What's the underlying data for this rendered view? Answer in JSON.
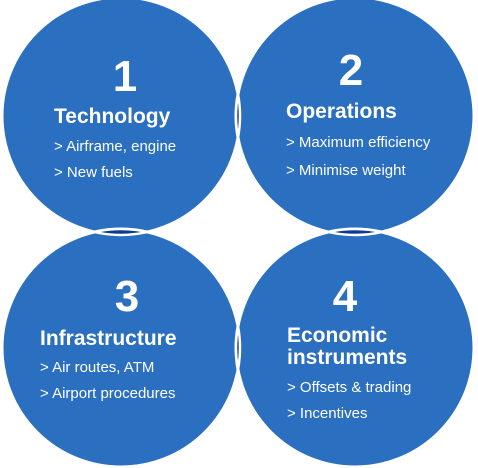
{
  "quadrants": [
    {
      "number": "1",
      "title_lines": [
        "Technology"
      ],
      "items": [
        "> Airframe, engine",
        "> New fuels"
      ]
    },
    {
      "number": "2",
      "title_lines": [
        "Operations"
      ],
      "items": [
        "> Maximum efficiency",
        "> Minimise weight"
      ]
    },
    {
      "number": "3",
      "title_lines": [
        "Infrastructure"
      ],
      "items": [
        "> Air routes, ATM",
        "> Airport procedures"
      ]
    },
    {
      "number": "4",
      "title_lines": [
        "Economic",
        "instruments"
      ],
      "items": [
        "> Offsets & trading",
        "> Incentives"
      ]
    }
  ],
  "colors": {
    "circle_fill": "#2b6fc0",
    "overlap_fill": "#0d3c8f",
    "outline": "#ffffff",
    "text": "#ffffff"
  }
}
